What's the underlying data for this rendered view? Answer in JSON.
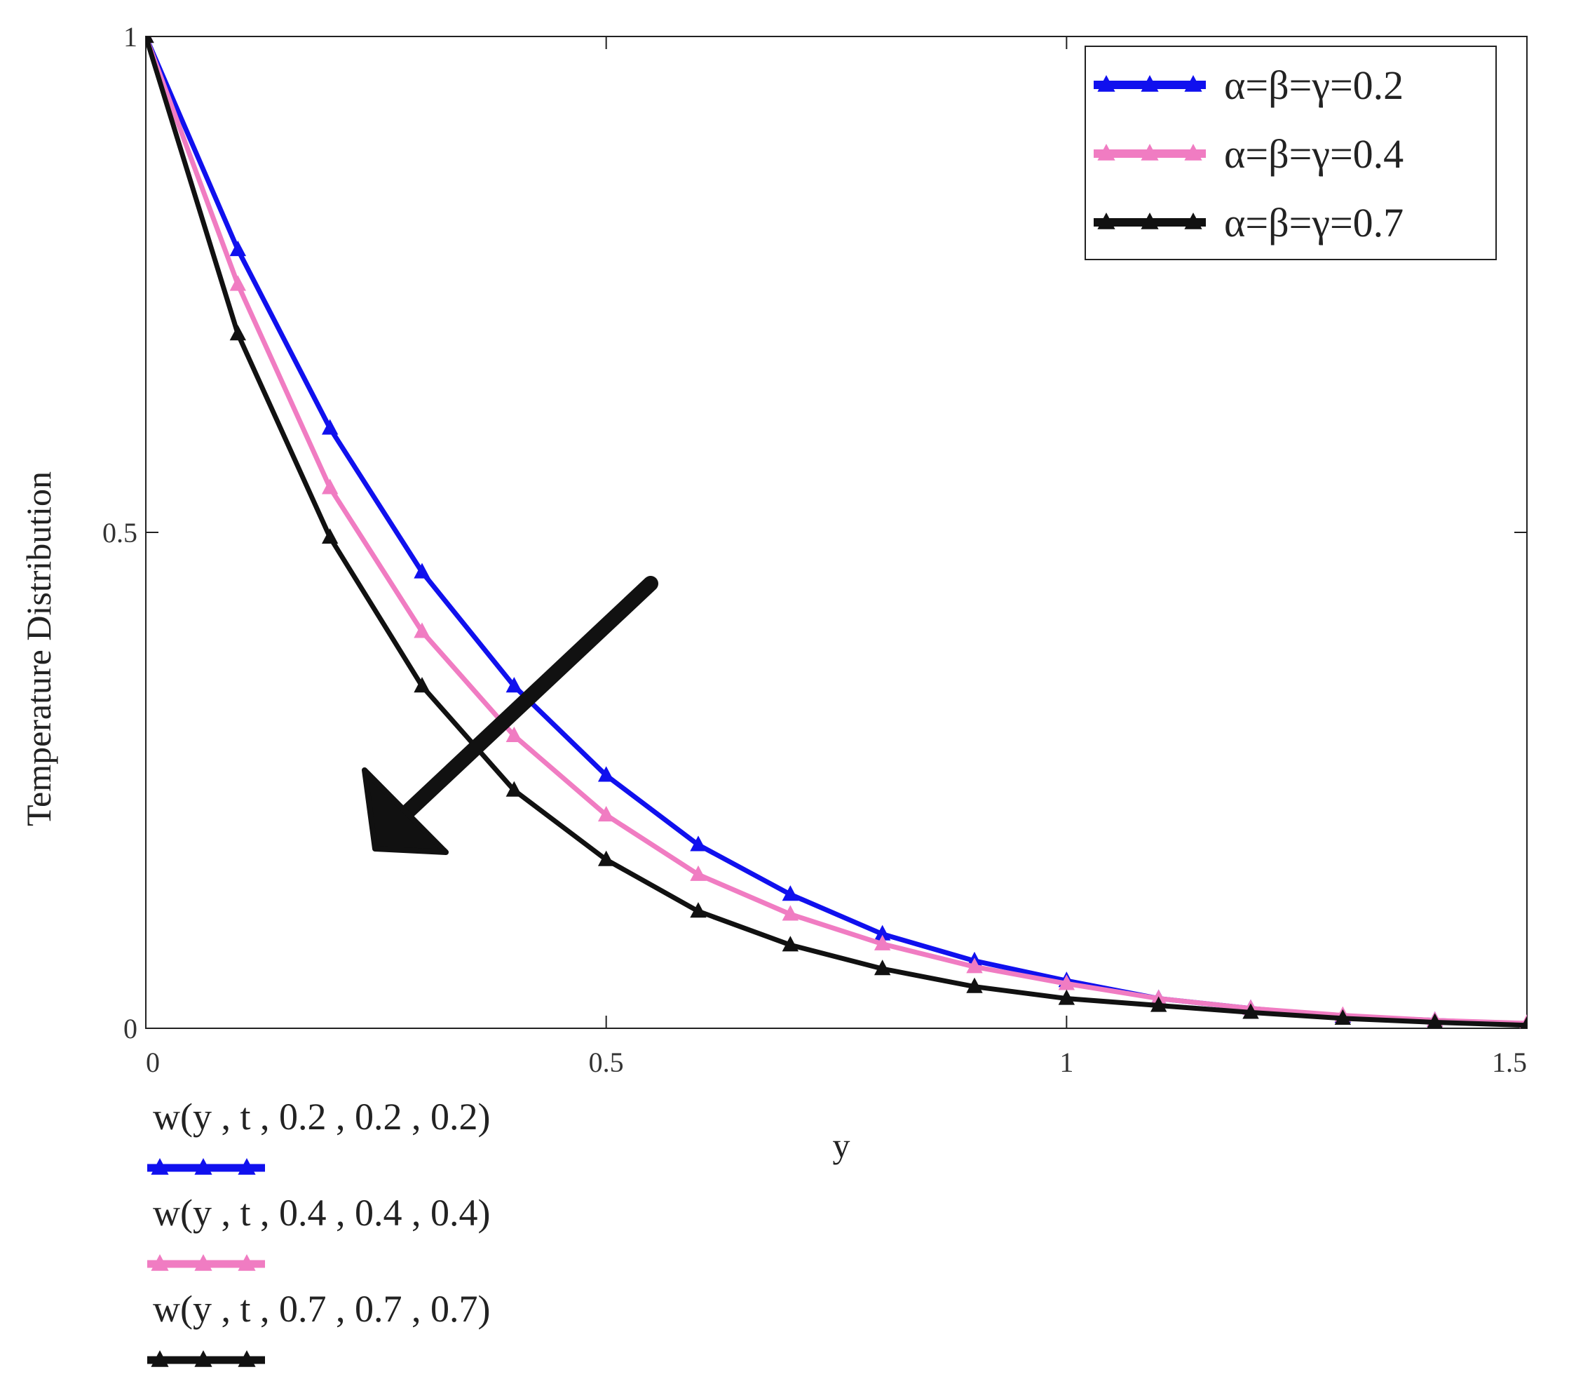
{
  "chart_data": {
    "type": "line",
    "xlabel": "y",
    "ylabel": "Temperature Distribution",
    "xlim": [
      0,
      1.5
    ],
    "ylim": [
      0,
      1
    ],
    "x_ticks": [
      0,
      0.5,
      1,
      1.5
    ],
    "x_tick_labels": [
      "0",
      "0.5",
      "1",
      "1.5"
    ],
    "y_ticks": [
      0,
      0.5,
      1
    ],
    "y_tick_labels": [
      "0",
      "0.5",
      "1"
    ],
    "grid": false,
    "legend_position": "top-right",
    "x": [
      0,
      0.1,
      0.2,
      0.3,
      0.4,
      0.5,
      0.6,
      0.7,
      0.8,
      0.9,
      1.0,
      1.1,
      1.2,
      1.3,
      1.4,
      1.5
    ],
    "series": [
      {
        "name": "α=β=γ=0.2",
        "trace_label": "w(y , t , 0.2 , 0.2 , 0.2)",
        "color": "#1010ee",
        "values": [
          1.0,
          0.785,
          0.605,
          0.46,
          0.345,
          0.255,
          0.185,
          0.135,
          0.095,
          0.068,
          0.048,
          0.03,
          0.02,
          0.012,
          0.008,
          0.004
        ]
      },
      {
        "name": "α=β=γ=0.4",
        "trace_label": "w(y , t , 0.4 , 0.4 , 0.4)",
        "color": "#f07cc2",
        "values": [
          1.0,
          0.75,
          0.545,
          0.4,
          0.295,
          0.215,
          0.155,
          0.115,
          0.085,
          0.062,
          0.045,
          0.03,
          0.02,
          0.013,
          0.008,
          0.005
        ]
      },
      {
        "name": "α=β=γ=0.7",
        "trace_label": "w(y , t , 0.7 , 0.7 , 0.7)",
        "color": "#111111",
        "values": [
          1.0,
          0.7,
          0.495,
          0.345,
          0.24,
          0.17,
          0.118,
          0.084,
          0.06,
          0.042,
          0.03,
          0.023,
          0.016,
          0.01,
          0.006,
          0.003
        ]
      }
    ]
  }
}
